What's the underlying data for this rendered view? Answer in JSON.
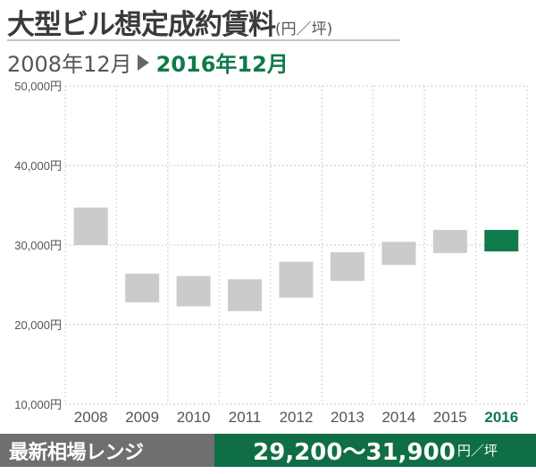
{
  "header": {
    "title": "大型ビル想定成約賃料",
    "unit": "(円／坪)",
    "period_start": "2008年12月",
    "period_end": "2016年12月"
  },
  "colors": {
    "bar_default": "#cbcbcb",
    "bar_highlight": "#0f7a4b",
    "highlight_label": "#0f7a4b",
    "footer_label_bg": "#6f6f6f",
    "footer_value_bg": "#0f6e44"
  },
  "chart_data": {
    "type": "bar",
    "subtype": "floating-range",
    "categories": [
      "2008",
      "2009",
      "2010",
      "2011",
      "2012",
      "2013",
      "2014",
      "2015",
      "2016"
    ],
    "series": [
      {
        "low": [
          30000,
          22800,
          22300,
          21700,
          23400,
          25500,
          27500,
          29000,
          29200
        ],
        "high": [
          34700,
          26400,
          26100,
          25700,
          27900,
          29100,
          30400,
          31900,
          31900
        ]
      }
    ],
    "highlight_category": "2016",
    "ylim": [
      10000,
      50000
    ],
    "yticks": [
      "10,000円",
      "20,000円",
      "30,000円",
      "40,000円",
      "50,000円"
    ],
    "ytick_values": [
      10000,
      20000,
      30000,
      40000,
      50000
    ],
    "grid": true
  },
  "footer": {
    "label": "最新相場レンジ",
    "value": "29,200〜31,900",
    "unit": "円／坪"
  }
}
